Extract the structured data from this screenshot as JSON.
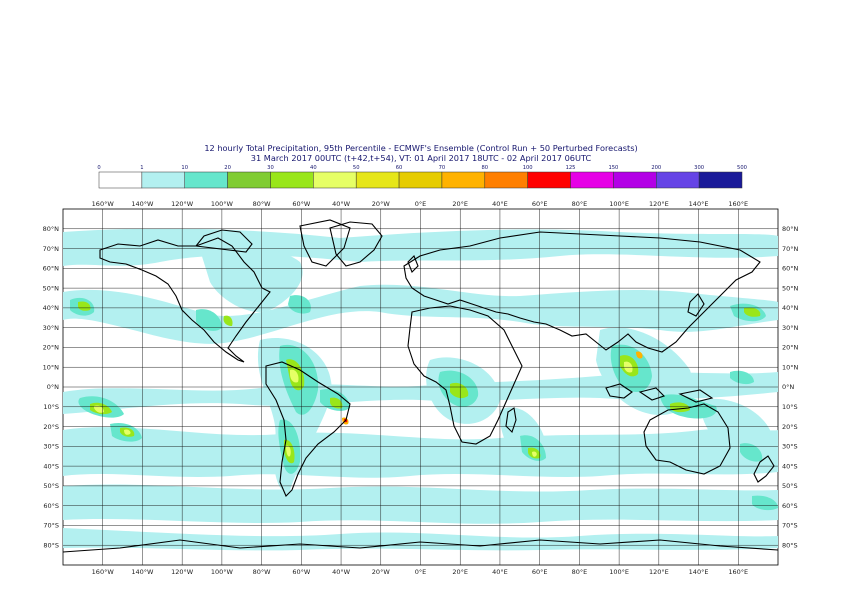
{
  "title": {
    "line1": "12 hourly Total Precipitation, 95th Percentile - ECMWF's Ensemble (Control Run + 50 Perturbed Forecasts)",
    "line2": "31 March 2017 00UTC (t+42,t+54), VT: 01 April 2017 18UTC - 02 April 2017 06UTC"
  },
  "legend": {
    "thresholds": [
      "0",
      "1",
      "10",
      "20",
      "30",
      "40",
      "50",
      "60",
      "70",
      "80",
      "100",
      "125",
      "150",
      "200",
      "300",
      "500"
    ],
    "colors": [
      "#ffffff",
      "#b3f0f0",
      "#66e6cc",
      "#80cc33",
      "#99e61a",
      "#e6ff66",
      "#e6e619",
      "#e6cc00",
      "#ffb200",
      "#ff7f00",
      "#ff0000",
      "#e600e6",
      "#b300e6",
      "#6644e6",
      "#1a1a99",
      "#0a0a4d"
    ]
  },
  "axes": {
    "lon_labels": [
      "160°W",
      "140°W",
      "120°W",
      "100°W",
      "80°W",
      "60°W",
      "40°W",
      "20°W",
      "0°E",
      "20°E",
      "40°E",
      "60°E",
      "80°E",
      "100°E",
      "120°E",
      "140°E",
      "160°E"
    ],
    "lat_labels": [
      "80°N",
      "70°N",
      "60°N",
      "50°N",
      "40°N",
      "30°N",
      "20°N",
      "10°N",
      "0°N",
      "10°S",
      "20°S",
      "30°S",
      "40°S",
      "50°S",
      "60°S",
      "70°S",
      "80°S"
    ]
  }
}
